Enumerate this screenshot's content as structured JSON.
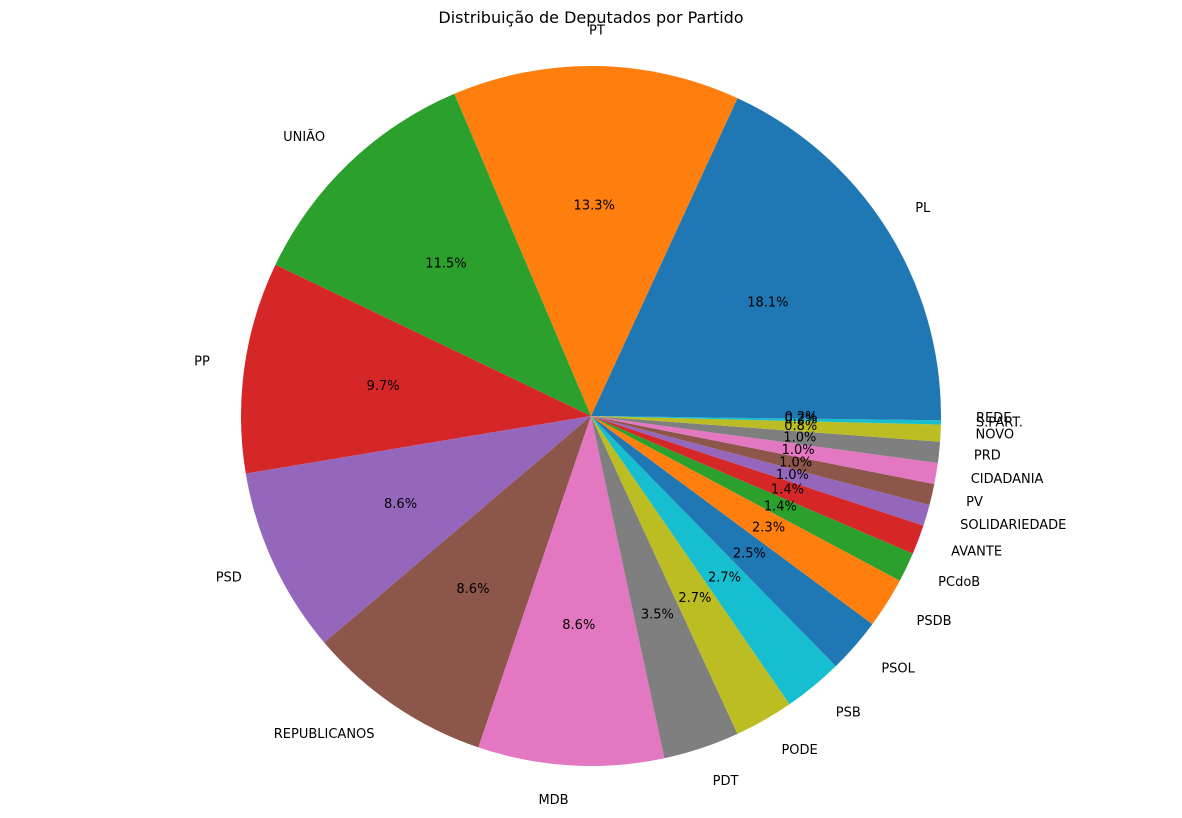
{
  "chart_data": {
    "type": "pie",
    "title": "Distribuição de Deputados por Partido",
    "start_angle": 0,
    "direction": "counterclockwise",
    "autopct_format": "%.1f%%",
    "labels": [
      "PL",
      "PT",
      "UNIÃO",
      "PP",
      "PSD",
      "REPUBLICANOS",
      "MDB",
      "PDT",
      "PODE",
      "PSB",
      "PSOL",
      "PSDB",
      "PCdoB",
      "AVANTE",
      "SOLIDARIEDADE",
      "PV",
      "CIDADANIA",
      "PRD",
      "NOVO",
      "S.PART.",
      "REDE"
    ],
    "values": [
      93,
      68,
      59,
      50,
      44,
      44,
      44,
      18,
      14,
      14,
      13,
      12,
      7,
      7,
      5,
      5,
      5,
      5,
      4,
      1,
      1
    ],
    "percent_labels": [
      "18.1%",
      "13.3%",
      "11.5%",
      "9.7%",
      "8.6%",
      "8.6%",
      "8.6%",
      "3.5%",
      "2.7%",
      "2.7%",
      "2.5%",
      "2.3%",
      "1.4%",
      "1.4%",
      "1.0%",
      "1.0%",
      "1.0%",
      "1.0%",
      "0.8%",
      "0.2%",
      "0.2%"
    ],
    "colors": [
      "#1f77b4",
      "#ff7f0e",
      "#2ca02c",
      "#d62728",
      "#9467bd",
      "#8c564b",
      "#e377c2",
      "#7f7f7f",
      "#bcbd22",
      "#17becf",
      "#1f77b4",
      "#ff7f0e",
      "#2ca02c",
      "#d62728",
      "#9467bd",
      "#8c564b",
      "#e377c2",
      "#7f7f7f",
      "#bcbd22",
      "#17becf",
      "#1f77b4"
    ],
    "legend": "none"
  }
}
